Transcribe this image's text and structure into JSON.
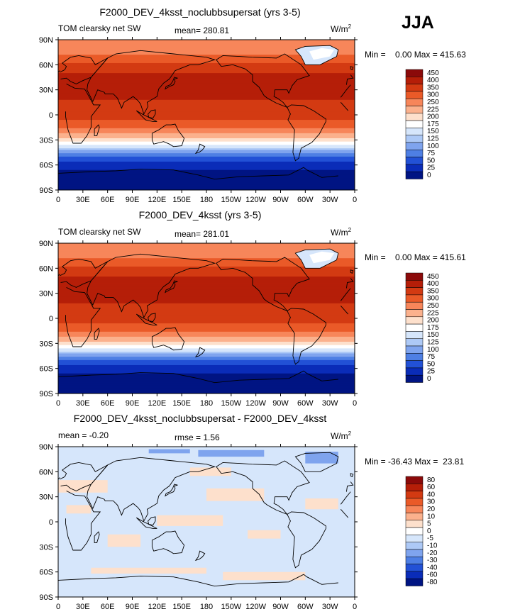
{
  "season": "JJA",
  "color_scale_abs": {
    "levels": [
      "450",
      "400",
      "350",
      "300",
      "250",
      "225",
      "200",
      "175",
      "150",
      "125",
      "100",
      "75",
      "50",
      "25",
      "0"
    ],
    "colors": [
      "#8b0a0a",
      "#b51e08",
      "#d33a12",
      "#ea5a28",
      "#f7865a",
      "#fbb18d",
      "#fde0cc",
      "#ffffff",
      "#d6e6fb",
      "#adc9f6",
      "#7fa4ee",
      "#4e7fe4",
      "#2251d6",
      "#0a2cb8",
      "#001483"
    ]
  },
  "color_scale_diff": {
    "levels": [
      "80",
      "60",
      "40",
      "30",
      "20",
      "10",
      "5",
      "0",
      "-5",
      "-10",
      "-20",
      "-30",
      "-40",
      "-60",
      "-80"
    ],
    "colors": [
      "#8b0a0a",
      "#b51e08",
      "#d33a12",
      "#ea5a28",
      "#f7865a",
      "#fbb18d",
      "#fde0cc",
      "#ffffff",
      "#d6e6fb",
      "#adc9f6",
      "#7fa4ee",
      "#4e7fe4",
      "#2251d6",
      "#0a2cb8",
      "#001483"
    ]
  },
  "lat_ticks": [
    "90N",
    "60N",
    "30N",
    "0",
    "30S",
    "60S",
    "90S"
  ],
  "lon_ticks": [
    "0",
    "30E",
    "60E",
    "90E",
    "120E",
    "150E",
    "180",
    "150W",
    "120W",
    "90W",
    "60W",
    "30W",
    "0"
  ],
  "panels": [
    {
      "title": "F2000_DEV_4ksst_noclubbsupersat (yrs 3-5)",
      "left_label": "TOM clearsky net SW",
      "mean_label": "mean= 280.81",
      "units_label": "W/m",
      "units_sup": "2",
      "min_label": "Min =",
      "min_value": "0.00",
      "max_label": "Max =",
      "max_value": "415.63",
      "scale": "abs"
    },
    {
      "title": "F2000_DEV_4ksst (yrs 3-5)",
      "left_label": "TOM clearsky net SW",
      "mean_label": "mean= 281.01",
      "units_label": "W/m",
      "units_sup": "2",
      "min_label": "Min =",
      "min_value": "0.00",
      "max_label": "Max =",
      "max_value": "415.61",
      "scale": "abs"
    },
    {
      "title": "F2000_DEV_4ksst_noclubbsupersat - F2000_DEV_4ksst",
      "left_label": "mean =  -0.20",
      "mean_label": "rmse =    1.56",
      "units_label": "W/m",
      "units_sup": "2",
      "min_label": "Min =",
      "min_value": "-36.43",
      "max_label": "Max =",
      "max_value": "23.81",
      "scale": "diff"
    }
  ]
}
